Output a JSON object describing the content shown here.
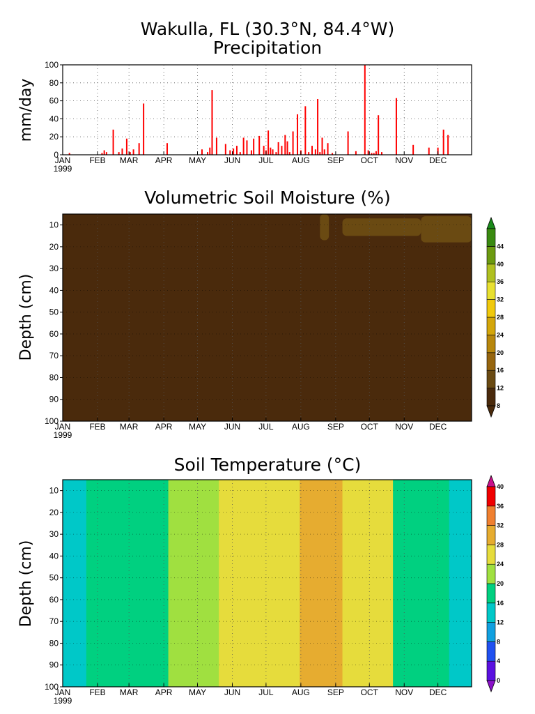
{
  "figure": {
    "title_line1": "Wakulla, FL   (30.3°N, 84.4°W)",
    "title_line2": "Precipitation"
  },
  "chart_data": [
    {
      "id": "precip",
      "type": "bar",
      "title": "Precipitation",
      "ylabel": "mm/day",
      "xlabel": "",
      "color": "#ff0000",
      "x_unit": "day of year 1999",
      "xlim": [
        1,
        365
      ],
      "ylim": [
        0,
        100
      ],
      "yticks": [
        0,
        20,
        40,
        60,
        80,
        100
      ],
      "grid": true,
      "month_labels": [
        "JAN",
        "FEB",
        "MAR",
        "APR",
        "MAY",
        "JUN",
        "JUL",
        "AUG",
        "SEP",
        "OCT",
        "NOV",
        "DEC"
      ],
      "year_label": "1999",
      "x": [
        7,
        36,
        38,
        40,
        46,
        51,
        54,
        58,
        61,
        64,
        69,
        73,
        94,
        125,
        130,
        132,
        134,
        138,
        146,
        150,
        153,
        156,
        159,
        162,
        165,
        169,
        171,
        176,
        180,
        182,
        184,
        186,
        188,
        191,
        193,
        196,
        199,
        201,
        203,
        206,
        210,
        213,
        217,
        220,
        223,
        226,
        228,
        230,
        232,
        234,
        237,
        241,
        255,
        262,
        270,
        273,
        276,
        278,
        280,
        282,
        285,
        298,
        313,
        327,
        335,
        340,
        344
      ],
      "values": [
        2,
        2,
        5,
        3,
        28,
        3,
        7,
        18,
        3,
        6,
        13,
        57,
        13,
        6,
        3,
        8,
        72,
        19,
        12,
        5,
        7,
        10,
        3,
        19,
        16,
        5,
        18,
        21,
        10,
        5,
        27,
        8,
        6,
        3,
        14,
        10,
        22,
        15,
        3,
        26,
        45,
        5,
        54,
        3,
        10,
        6,
        62,
        3,
        19,
        6,
        13,
        2,
        26,
        4,
        100,
        5,
        2,
        2,
        4,
        44,
        3,
        63,
        11,
        8,
        8,
        28,
        22
      ]
    },
    {
      "id": "moisture",
      "type": "heatmap",
      "title": "Volumetric Soil Moisture (%)",
      "ylabel": "Depth (cm)",
      "xlim": [
        1,
        365
      ],
      "ylim": [
        100,
        5
      ],
      "yticks": [
        10,
        20,
        30,
        40,
        50,
        60,
        70,
        80,
        90,
        100
      ],
      "month_labels": [
        "JAN",
        "FEB",
        "MAR",
        "APR",
        "MAY",
        "JUN",
        "JUL",
        "AUG",
        "SEP",
        "OCT",
        "NOV",
        "DEC"
      ],
      "year_label": "1999",
      "base_value": 6,
      "colorbar": {
        "levels": [
          "8",
          "12",
          "16",
          "20",
          "24",
          "28",
          "32",
          "36",
          "40",
          "44"
        ],
        "colors": [
          "#4a2a0c",
          "#4a2a0c",
          "#6a4a12",
          "#96650e",
          "#b8870c",
          "#d4a60a",
          "#f0c90c",
          "#e8e030",
          "#b0c020",
          "#6c9a10",
          "#3a8a10",
          "#1a8a1a"
        ]
      },
      "wet_patches": [
        {
          "day_start": 230,
          "day_end": 238,
          "depth_top": 5,
          "depth_bottom": 17,
          "value": 9
        },
        {
          "day_start": 250,
          "day_end": 320,
          "depth_top": 7,
          "depth_bottom": 15,
          "value": 9
        },
        {
          "day_start": 320,
          "day_end": 365,
          "depth_top": 6,
          "depth_bottom": 18,
          "value": 10
        }
      ]
    },
    {
      "id": "temperature",
      "type": "heatmap",
      "title": "Soil Temperature (°C)",
      "ylabel": "Depth (cm)",
      "xlim": [
        1,
        365
      ],
      "ylim": [
        100,
        5
      ],
      "yticks": [
        10,
        20,
        30,
        40,
        50,
        60,
        70,
        80,
        90,
        100
      ],
      "month_labels": [
        "JAN",
        "FEB",
        "MAR",
        "APR",
        "MAY",
        "JUN",
        "JUL",
        "AUG",
        "SEP",
        "OCT",
        "NOV",
        "DEC"
      ],
      "year_label": "1999",
      "colorbar": {
        "levels": [
          "0",
          "4",
          "8",
          "12",
          "16",
          "20",
          "24",
          "28",
          "32",
          "36",
          "40"
        ],
        "colors": [
          "#8a10c8",
          "#5a10e0",
          "#2050f0",
          "#10a0e0",
          "#00c8c8",
          "#00d080",
          "#a0e040",
          "#e6dc3c",
          "#e6ac30",
          "#f08030",
          "#f00000",
          "#c8108a"
        ]
      },
      "bands": [
        {
          "day_start": 1,
          "day_end": 5,
          "value": 13,
          "label": "12-16"
        },
        {
          "day_start": 5,
          "day_end": 22,
          "value": 15,
          "label": "12-16"
        },
        {
          "day_start": 22,
          "day_end": 60,
          "value": 18,
          "label": "16-20"
        },
        {
          "day_start": 60,
          "day_end": 75,
          "value": 16,
          "label": "16-20"
        },
        {
          "day_start": 75,
          "day_end": 95,
          "value": 19,
          "label": "16-20"
        },
        {
          "day_start": 95,
          "day_end": 140,
          "value": 22,
          "label": "20-24"
        },
        {
          "day_start": 140,
          "day_end": 212,
          "value": 26,
          "label": "24-28"
        },
        {
          "day_start": 212,
          "day_end": 250,
          "value": 29,
          "label": "28-32"
        },
        {
          "day_start": 250,
          "day_end": 295,
          "value": 26,
          "label": "24-28"
        },
        {
          "day_start": 295,
          "day_end": 345,
          "value": 18,
          "label": "16-20"
        },
        {
          "day_start": 345,
          "day_end": 365,
          "value": 14,
          "label": "12-16"
        }
      ]
    }
  ]
}
